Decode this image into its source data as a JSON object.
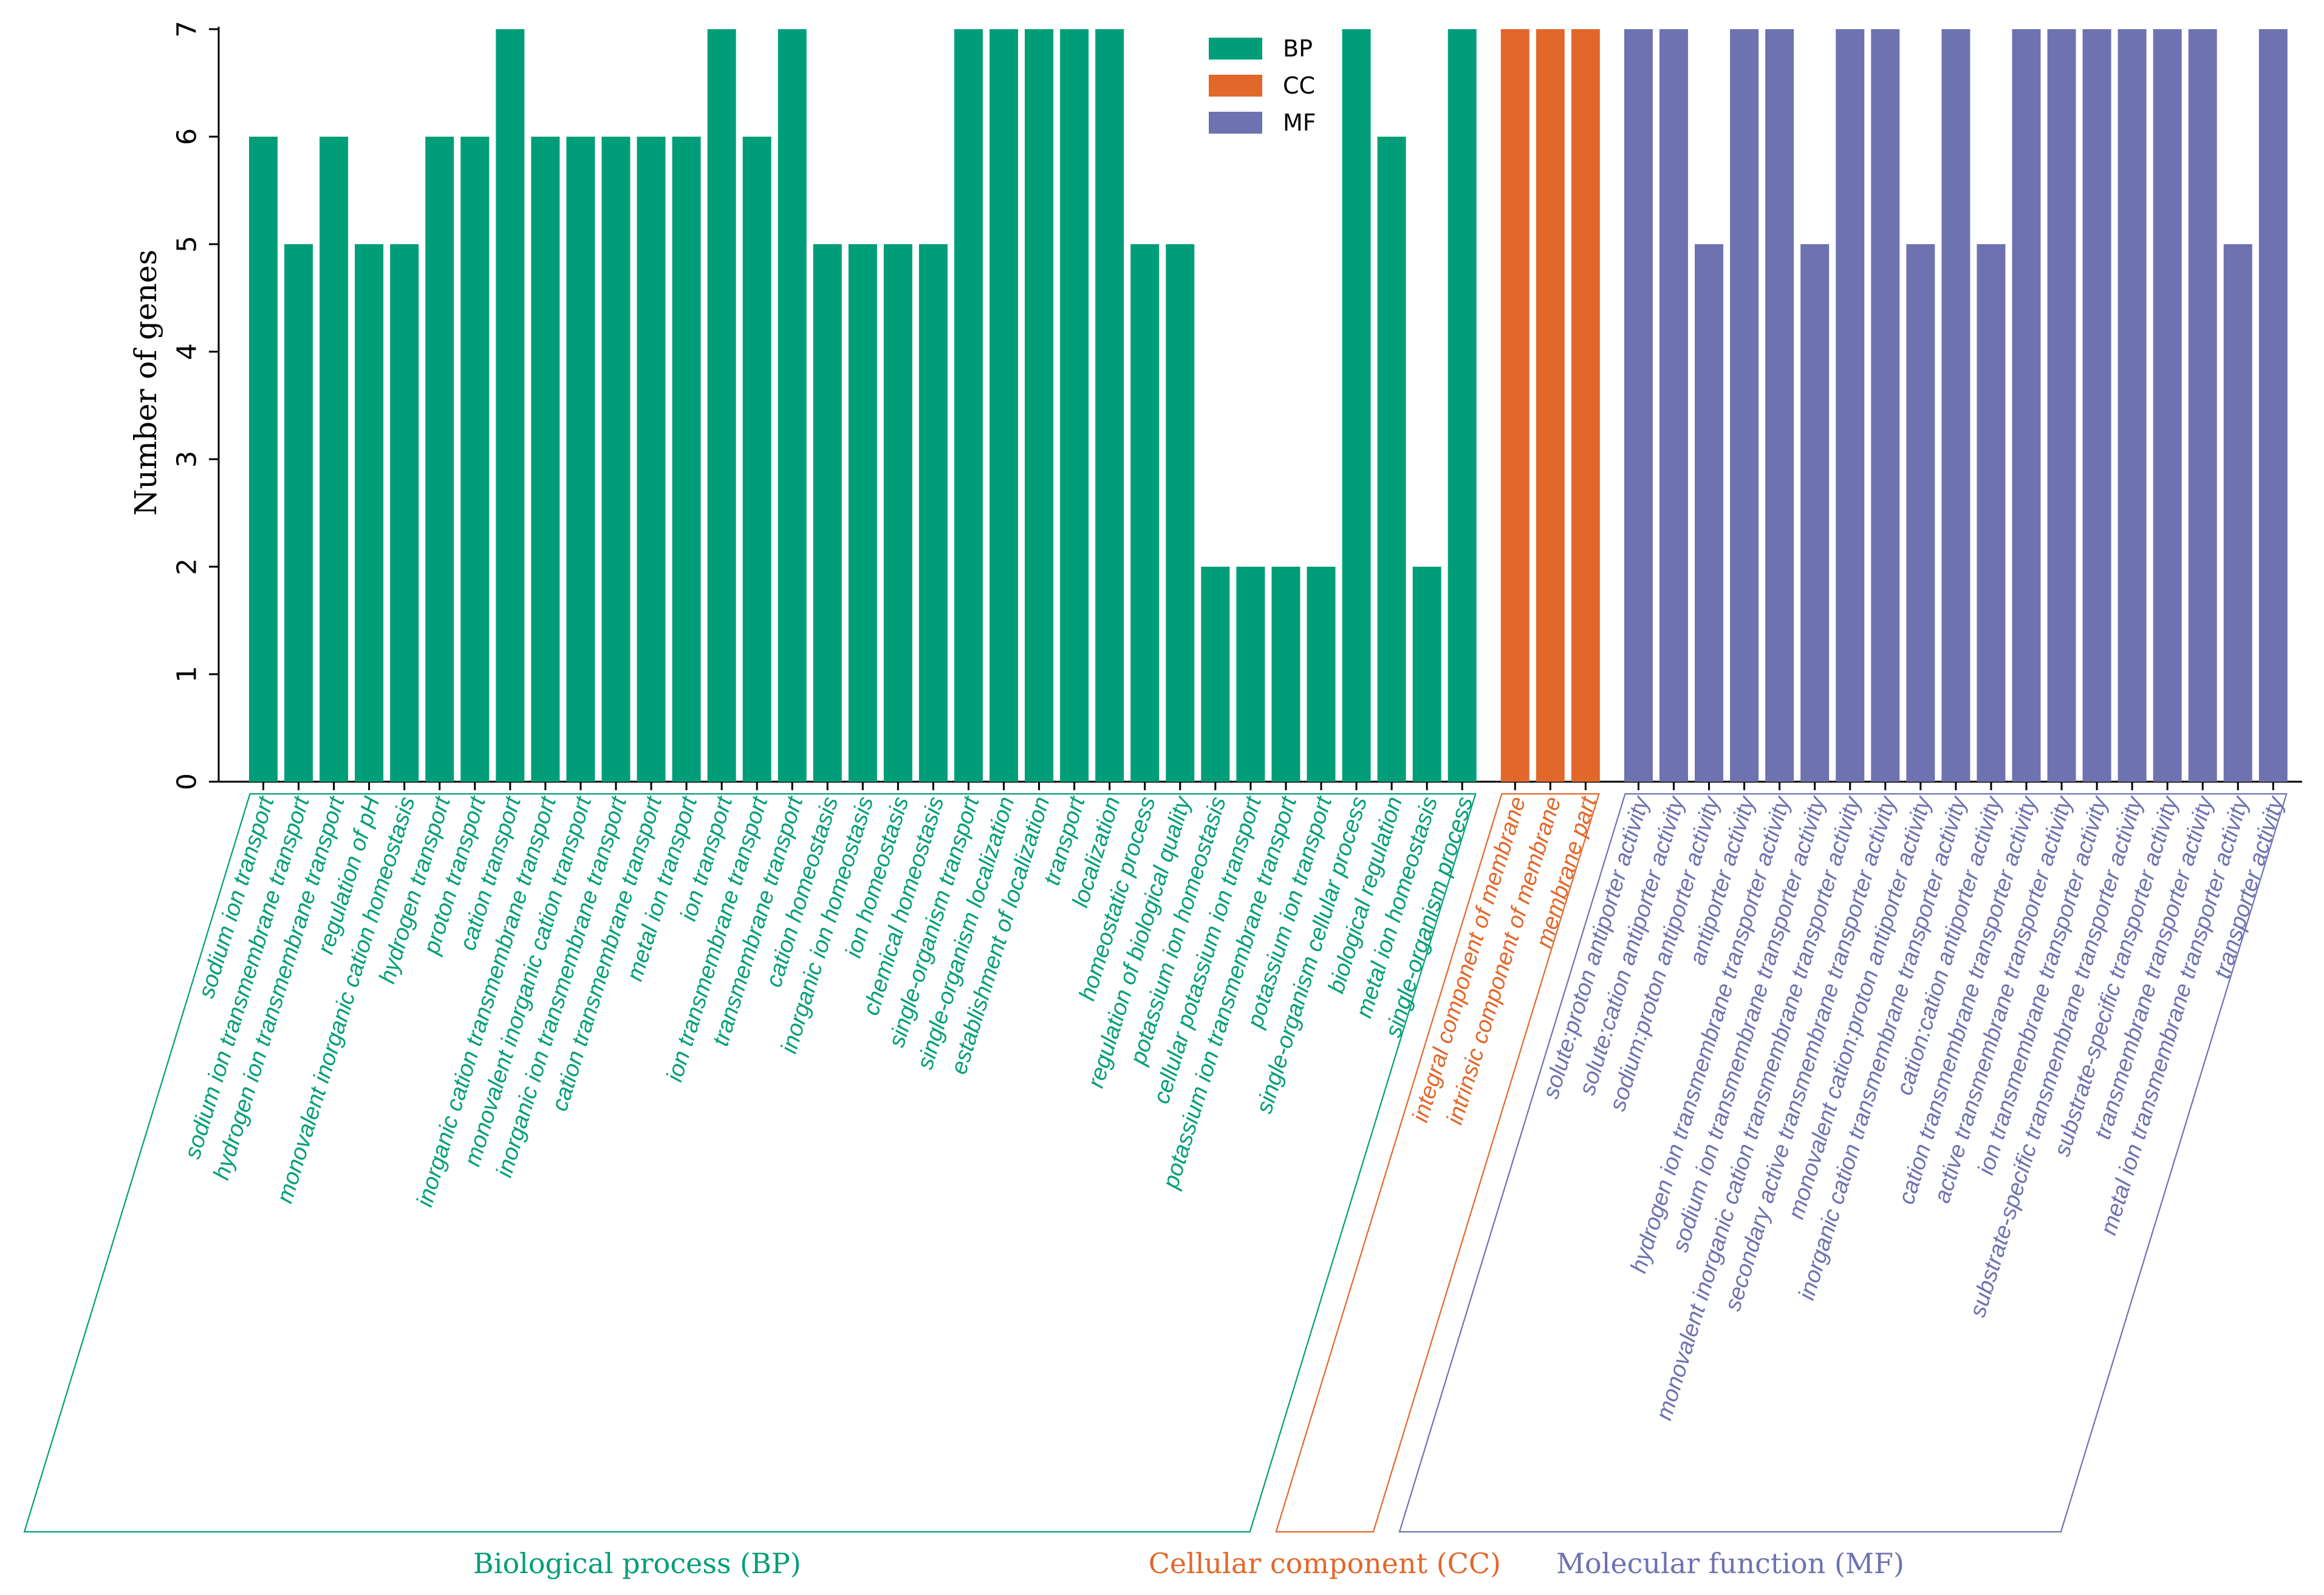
{
  "colors": {
    "BP": "#009e78",
    "CC": "#e2672b",
    "MF": "#6e72b0"
  },
  "chart_data": {
    "type": "bar",
    "ylabel": "Number of genes",
    "ylim": [
      0,
      7
    ],
    "yticks": [
      0,
      1,
      2,
      3,
      4,
      5,
      6,
      7
    ],
    "legend": {
      "placement": "top-center",
      "entries": [
        {
          "key": "BP",
          "label": "BP"
        },
        {
          "key": "CC",
          "label": "CC"
        },
        {
          "key": "MF",
          "label": "MF"
        }
      ]
    },
    "groups": [
      {
        "key": "BP",
        "title": "Biological process (BP)",
        "categories": [
          "sodium ion transport",
          "sodium ion transmembrane transport",
          "hydrogen ion transmembrane transport",
          "regulation of pH",
          "monovalent inorganic cation homeostasis",
          "hydrogen transport",
          "proton transport",
          "cation transport",
          "inorganic cation transmembrane transport",
          "monovalent inorganic cation transport",
          "inorganic ion transmembrane transport",
          "cation transmembrane transport",
          "metal ion transport",
          "ion transport",
          "ion transmembrane transport",
          "transmembrane transport",
          "cation homeostasis",
          "inorganic ion homeostasis",
          "ion homeostasis",
          "chemical homeostasis",
          "single-organism transport",
          "single-organism localization",
          "establishment of localization",
          "transport",
          "localization",
          "homeostatic process",
          "regulation of biological quality",
          "potassium ion homeostasis",
          "cellular potassium ion transport",
          "potassium ion transmembrane transport",
          "potassium ion transport",
          "single-organism cellular process",
          "biological regulation",
          "metal ion homeostasis",
          "single-organism process"
        ],
        "values": [
          6,
          5,
          6,
          5,
          5,
          6,
          6,
          7,
          6,
          6,
          6,
          6,
          6,
          7,
          6,
          7,
          5,
          5,
          5,
          5,
          7,
          7,
          7,
          7,
          7,
          5,
          5,
          2,
          2,
          2,
          2,
          7,
          6,
          2,
          7
        ]
      },
      {
        "key": "CC",
        "title": "Cellular component (CC)",
        "categories": [
          "integral component of membrane",
          "intrinsic component of membrane",
          "membrane part"
        ],
        "values": [
          7,
          7,
          7
        ]
      },
      {
        "key": "MF",
        "title": "Molecular function (MF)",
        "categories": [
          "solute:proton antiporter activity",
          "solute:cation antiporter activity",
          "sodium:proton antiporter activity",
          "antiporter activity",
          "hydrogen ion transmembrane transporter activity",
          "sodium ion transmembrane transporter activity",
          "monovalent inorganic cation transmembrane transporter activity",
          "secondary active transmembrane transporter activity",
          "monovalent cation:proton antiporter activity",
          "inorganic cation transmembrane transporter activity",
          "cation:cation antiporter activity",
          "cation transmembrane transporter activity",
          "active transmembrane transporter activity",
          "ion transmembrane transporter activity",
          "substrate-specific transmembrane transporter activity",
          "substrate-specific transporter activity",
          "transmembrane transporter activity",
          "metal ion transmembrane transporter activity",
          "transporter activity"
        ],
        "values": [
          7,
          7,
          5,
          7,
          7,
          5,
          7,
          7,
          5,
          7,
          5,
          7,
          7,
          7,
          7,
          7,
          7,
          5,
          7
        ]
      }
    ]
  }
}
